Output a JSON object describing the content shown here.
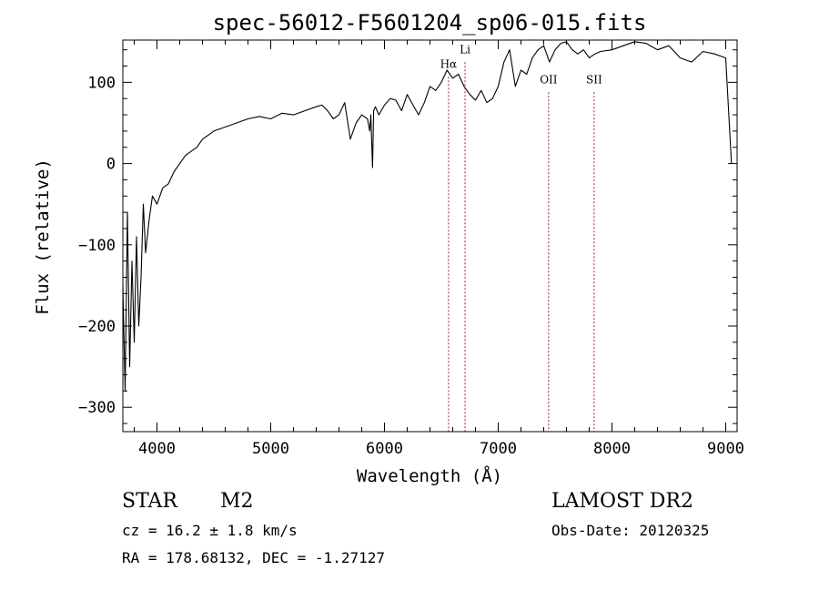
{
  "chart_data": {
    "type": "line",
    "title": "spec-56012-F5601204_sp06-015.fits",
    "xlabel": "Wavelength (Å)",
    "ylabel": "Flux (relative)",
    "xlim": [
      3700,
      9100
    ],
    "ylim": [
      -330,
      152
    ],
    "x_ticks": [
      4000,
      5000,
      6000,
      7000,
      8000,
      9000
    ],
    "y_ticks": [
      -300,
      -200,
      -100,
      0,
      100
    ],
    "grid": false,
    "legend": "none",
    "line_color": "#000000",
    "marker_color": "#a02020",
    "series": [
      {
        "x": [
          3700,
          3720,
          3740,
          3760,
          3780,
          3800,
          3820,
          3840,
          3860,
          3880,
          3900,
          3930,
          3960,
          4000,
          4050,
          4100,
          4150,
          4200,
          4250,
          4300,
          4350,
          4400,
          4450,
          4500,
          4600,
          4700,
          4800,
          4900,
          5000,
          5100,
          5200,
          5300,
          5400,
          5450,
          5500,
          5550,
          5600,
          5650,
          5700,
          5750,
          5800,
          5850,
          5870,
          5880,
          5895,
          5905,
          5920,
          5950,
          6000,
          6050,
          6100,
          6150,
          6200,
          6250,
          6300,
          6350,
          6400,
          6450,
          6500,
          6550,
          6600,
          6650,
          6700,
          6750,
          6800,
          6850,
          6900,
          6950,
          7000,
          7050,
          7100,
          7150,
          7200,
          7250,
          7300,
          7350,
          7400,
          7450,
          7500,
          7550,
          7600,
          7650,
          7700,
          7750,
          7800,
          7850,
          7900,
          8000,
          8100,
          8200,
          8300,
          8400,
          8500,
          8600,
          8700,
          8800,
          8900,
          9000,
          9050
        ],
        "values": [
          -150,
          -280,
          -60,
          -250,
          -120,
          -220,
          -90,
          -200,
          -140,
          -50,
          -110,
          -70,
          -40,
          -50,
          -30,
          -25,
          -10,
          0,
          10,
          15,
          20,
          30,
          35,
          40,
          45,
          50,
          55,
          58,
          55,
          62,
          60,
          65,
          70,
          72,
          65,
          55,
          60,
          75,
          30,
          50,
          60,
          55,
          40,
          60,
          -5,
          65,
          70,
          60,
          72,
          80,
          78,
          65,
          85,
          72,
          60,
          75,
          95,
          90,
          100,
          115,
          105,
          110,
          95,
          85,
          78,
          90,
          75,
          80,
          95,
          125,
          140,
          95,
          115,
          110,
          130,
          140,
          145,
          125,
          140,
          148,
          150,
          140,
          135,
          140,
          130,
          135,
          138,
          140,
          145,
          150,
          148,
          140,
          145,
          130,
          125,
          138,
          135,
          130,
          0
        ]
      }
    ],
    "line_markers": [
      {
        "x": 6563,
        "label": "Hα",
        "label_y": 118
      },
      {
        "x": 6708,
        "label": "Li",
        "label_y": 136
      },
      {
        "x": 7443,
        "label": "OII",
        "label_y": 99
      },
      {
        "x": 7843,
        "label": "SII",
        "label_y": 99
      }
    ]
  },
  "info": {
    "object_type": "STAR",
    "subclass": "M2",
    "survey": "LAMOST DR2",
    "redshift_text": "cz = 16.2 ± 1.8 km/s",
    "obs_date_text": "Obs-Date: 20120325",
    "coord_text": "RA = 178.68132, DEC =  -1.27127"
  }
}
